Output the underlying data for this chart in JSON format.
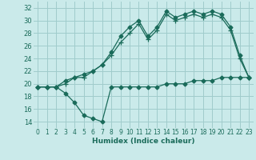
{
  "xlabel": "Humidex (Indice chaleur)",
  "background_color": "#caeaea",
  "grid_color": "#a0cccc",
  "line_color": "#1a6b5a",
  "xlim": [
    -0.5,
    23.5
  ],
  "ylim": [
    13,
    33
  ],
  "yticks": [
    14,
    16,
    18,
    20,
    22,
    24,
    26,
    28,
    30,
    32
  ],
  "xticks": [
    0,
    1,
    2,
    3,
    4,
    5,
    6,
    7,
    8,
    9,
    10,
    11,
    12,
    13,
    14,
    15,
    16,
    17,
    18,
    19,
    20,
    21,
    22,
    23
  ],
  "series1_x": [
    0,
    1,
    2,
    3,
    4,
    5,
    6,
    7,
    8,
    9,
    10,
    11,
    12,
    13,
    14,
    15,
    16,
    17,
    18,
    19,
    20,
    21,
    22,
    23
  ],
  "series1_y": [
    19.5,
    19.5,
    19.5,
    20.5,
    21.0,
    21.5,
    22.0,
    23.0,
    25.0,
    27.5,
    29.0,
    30.0,
    27.5,
    29.0,
    31.5,
    30.5,
    31.0,
    31.5,
    31.0,
    31.5,
    31.0,
    29.0,
    24.5,
    21.0
  ],
  "series2_x": [
    0,
    1,
    2,
    3,
    4,
    5,
    6,
    7,
    8,
    9,
    10,
    11,
    12,
    13,
    14,
    15,
    16,
    17,
    18,
    19,
    20,
    21,
    22,
    23
  ],
  "series2_y": [
    19.5,
    19.5,
    19.5,
    20.0,
    21.0,
    21.0,
    22.0,
    23.0,
    24.5,
    26.5,
    28.0,
    29.5,
    27.0,
    28.5,
    31.0,
    30.0,
    30.5,
    31.0,
    30.5,
    31.0,
    30.5,
    28.5,
    24.0,
    21.0
  ],
  "series3_x": [
    0,
    1,
    2,
    3,
    4,
    5,
    6,
    7,
    8,
    9,
    10,
    11,
    12,
    13,
    14,
    15,
    16,
    17,
    18,
    19,
    20,
    21,
    22,
    23
  ],
  "series3_y": [
    19.5,
    19.5,
    19.5,
    18.5,
    17.0,
    15.0,
    14.5,
    14.0,
    19.5,
    19.5,
    19.5,
    19.5,
    19.5,
    19.5,
    20.0,
    20.0,
    20.0,
    20.5,
    20.5,
    20.5,
    21.0,
    21.0,
    21.0,
    21.0
  ]
}
